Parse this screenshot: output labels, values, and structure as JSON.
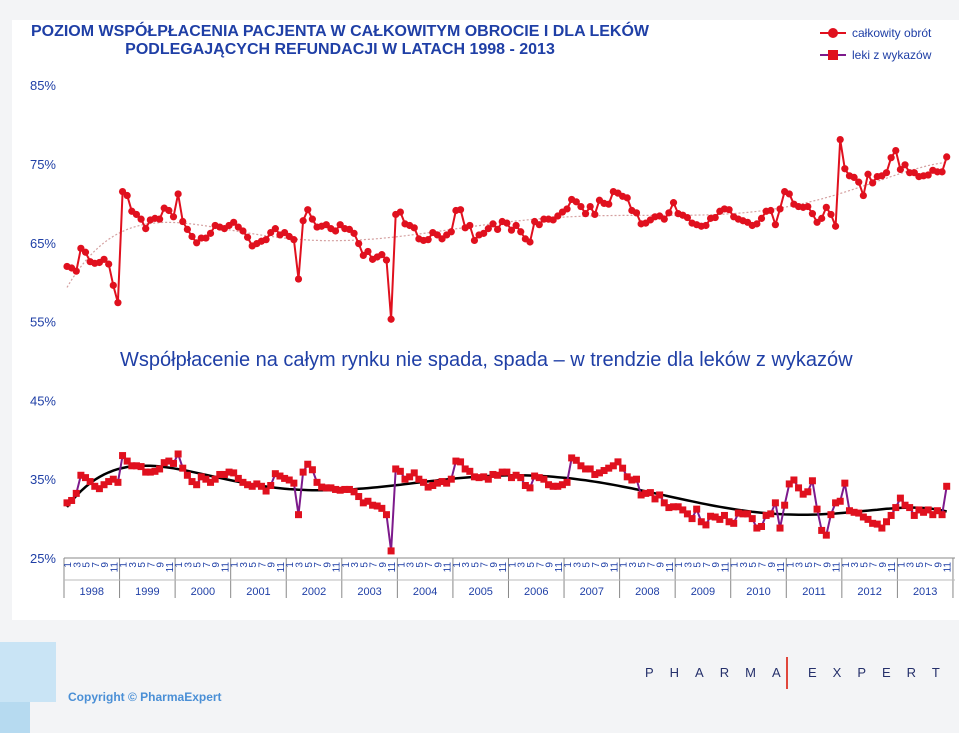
{
  "title_line1": "POZIOM WSPÓŁPŁACENIA PACJENTA W CAŁKOWITYM OBROCIE I DLA LEKÓW",
  "title_line2": "PODLEGAJĄCYCH REFUNDACJI  W LATACH 1998 - 2013",
  "annotation": "Współpłacenie na całym rynku nie spada, spada – w trendzie dla leków z wykazów",
  "copyright": "Copyright © PharmaExpert",
  "brand_left": "PHARMA",
  "brand_right": "EXPERT",
  "colors": {
    "series1": "#e0101e",
    "series2": "#7d1a8c",
    "trend1": "#d4a0a0",
    "trend2": "#000000",
    "title": "#1f3fa6"
  },
  "chart_data": {
    "type": "line",
    "title": "POZIOM WSPÓŁPŁACENIA PACJENTA W CAŁKOWITYM OBROCIE I DLA LEKÓW PODLEGAJĄCYCH REFUNDACJI  W LATACH 1998 - 2013",
    "y_ticks": [
      "25%",
      "35%",
      "45%",
      "55%",
      "65%",
      "75%",
      "85%"
    ],
    "ylim": [
      25,
      85
    ],
    "month_ticks": [
      "1",
      "3",
      "5",
      "7",
      "9",
      "11"
    ],
    "years": [
      "1998",
      "1999",
      "2000",
      "2001",
      "2002",
      "2003",
      "2004",
      "2005",
      "2006",
      "2007",
      "2008",
      "2009",
      "2010",
      "2011",
      "2012",
      "2013"
    ],
    "legend_position": "top-right",
    "series": [
      {
        "name": "całkowity obrót",
        "marker": "circle",
        "values": [
          62.0,
          61.8,
          61.4,
          64.3,
          63.8,
          62.6,
          62.4,
          62.5,
          62.9,
          62.3,
          59.6,
          57.4,
          71.5,
          71.0,
          69.0,
          68.6,
          68.0,
          66.8,
          67.9,
          68.1,
          68.0,
          69.4,
          69.1,
          68.3,
          71.2,
          67.7,
          66.7,
          65.8,
          65.0,
          65.6,
          65.6,
          66.2,
          67.2,
          67.0,
          66.8,
          67.2,
          67.6,
          67.0,
          66.5,
          65.7,
          64.6,
          64.9,
          65.2,
          65.4,
          66.3,
          66.8,
          66.0,
          66.3,
          65.8,
          65.4,
          60.4,
          67.8,
          69.2,
          68.0,
          67.0,
          67.1,
          67.3,
          66.8,
          66.5,
          67.3,
          66.8,
          66.7,
          66.2,
          64.9,
          63.4,
          63.9,
          62.9,
          63.2,
          63.5,
          62.8,
          55.3,
          68.6,
          68.9,
          67.4,
          67.2,
          66.9,
          65.5,
          65.3,
          65.4,
          66.3,
          66.0,
          65.5,
          66.0,
          66.4,
          69.1,
          69.2,
          66.9,
          67.2,
          65.3,
          66.0,
          66.2,
          66.8,
          67.4,
          66.7,
          67.7,
          67.5,
          66.6,
          67.2,
          66.4,
          65.5,
          65.1,
          67.7,
          67.3,
          68.0,
          68.0,
          67.9,
          68.4,
          68.9,
          69.3,
          70.5,
          70.2,
          69.6,
          68.7,
          69.6,
          68.6,
          70.4,
          70.0,
          69.9,
          71.5,
          71.3,
          70.9,
          70.7,
          69.1,
          68.8,
          67.4,
          67.5,
          67.9,
          68.3,
          68.4,
          68.0,
          68.8,
          70.1,
          68.7,
          68.5,
          68.2,
          67.5,
          67.3,
          67.1,
          67.2,
          68.1,
          68.2,
          69.0,
          69.3,
          69.2,
          68.3,
          68.0,
          67.8,
          67.6,
          67.2,
          67.4,
          68.1,
          69.0,
          69.1,
          67.3,
          69.3,
          71.5,
          71.2,
          69.9,
          69.6,
          69.5,
          69.6,
          68.7,
          67.6,
          68.1,
          69.5,
          68.6,
          67.1,
          78.1,
          74.4,
          73.5,
          73.3,
          72.7,
          71.0,
          73.7,
          72.6,
          73.4,
          73.5,
          73.9,
          75.8,
          76.7,
          74.3,
          74.9,
          73.9,
          73.9,
          73.4,
          73.5,
          73.6,
          74.2,
          74.0,
          74.0,
          75.9
        ]
      },
      {
        "name": "leki z wykazów",
        "marker": "square",
        "values": [
          32.0,
          32.3,
          33.2,
          35.5,
          35.2,
          34.7,
          34.1,
          33.8,
          34.3,
          34.7,
          35.0,
          34.6,
          38.0,
          37.3,
          36.7,
          36.7,
          36.6,
          35.9,
          35.9,
          36.0,
          36.3,
          37.1,
          37.3,
          37.0,
          38.2,
          36.4,
          35.5,
          34.7,
          34.3,
          35.3,
          35.0,
          34.6,
          35.0,
          35.6,
          35.6,
          35.9,
          35.8,
          35.1,
          34.6,
          34.3,
          34.1,
          34.4,
          34.1,
          33.5,
          34.2,
          35.7,
          35.4,
          35.1,
          34.9,
          34.5,
          30.5,
          35.9,
          36.9,
          36.2,
          34.6,
          34.0,
          33.9,
          33.9,
          33.7,
          33.6,
          33.7,
          33.7,
          33.4,
          32.8,
          32.0,
          32.2,
          31.7,
          31.6,
          31.3,
          30.5,
          25.9,
          36.3,
          36.0,
          35.0,
          35.3,
          35.8,
          35.0,
          34.6,
          34.0,
          34.2,
          34.5,
          34.7,
          34.5,
          35.0,
          37.3,
          37.2,
          36.3,
          36.0,
          35.3,
          35.2,
          35.3,
          35.0,
          35.6,
          35.5,
          35.9,
          35.9,
          35.2,
          35.5,
          35.2,
          34.2,
          33.9,
          35.4,
          35.2,
          35.0,
          34.3,
          34.1,
          34.1,
          34.3,
          34.6,
          37.7,
          37.4,
          36.7,
          36.3,
          36.3,
          35.6,
          35.8,
          36.1,
          36.4,
          36.7,
          37.2,
          36.4,
          35.3,
          34.9,
          35.0,
          33.0,
          33.2,
          33.3,
          32.5,
          33.0,
          32.0,
          31.4,
          31.5,
          31.5,
          31.1,
          30.6,
          30.0,
          31.2,
          29.6,
          29.2,
          30.3,
          30.2,
          29.9,
          30.4,
          29.6,
          29.4,
          30.7,
          30.6,
          30.6,
          30.0,
          28.8,
          29.0,
          30.4,
          30.6,
          32.0,
          28.8,
          31.7,
          34.4,
          34.9,
          33.9,
          33.1,
          33.4,
          34.8,
          31.2,
          28.5,
          27.9,
          30.5,
          32.0,
          32.2,
          34.5,
          31.0,
          30.8,
          30.7,
          30.2,
          29.9,
          29.4,
          29.3,
          28.8,
          29.6,
          30.4,
          31.4,
          32.6,
          31.7,
          31.4,
          30.4,
          31.1,
          30.8,
          31.1,
          30.5,
          31.0,
          30.5,
          34.1
        ]
      }
    ],
    "trendlines": [
      "polynomial trend for całkowity obrót",
      "polynomial trend for leki z wykazów"
    ]
  },
  "legend": [
    {
      "label": "całkowity obrót"
    },
    {
      "label": "leki z wykazów"
    }
  ]
}
